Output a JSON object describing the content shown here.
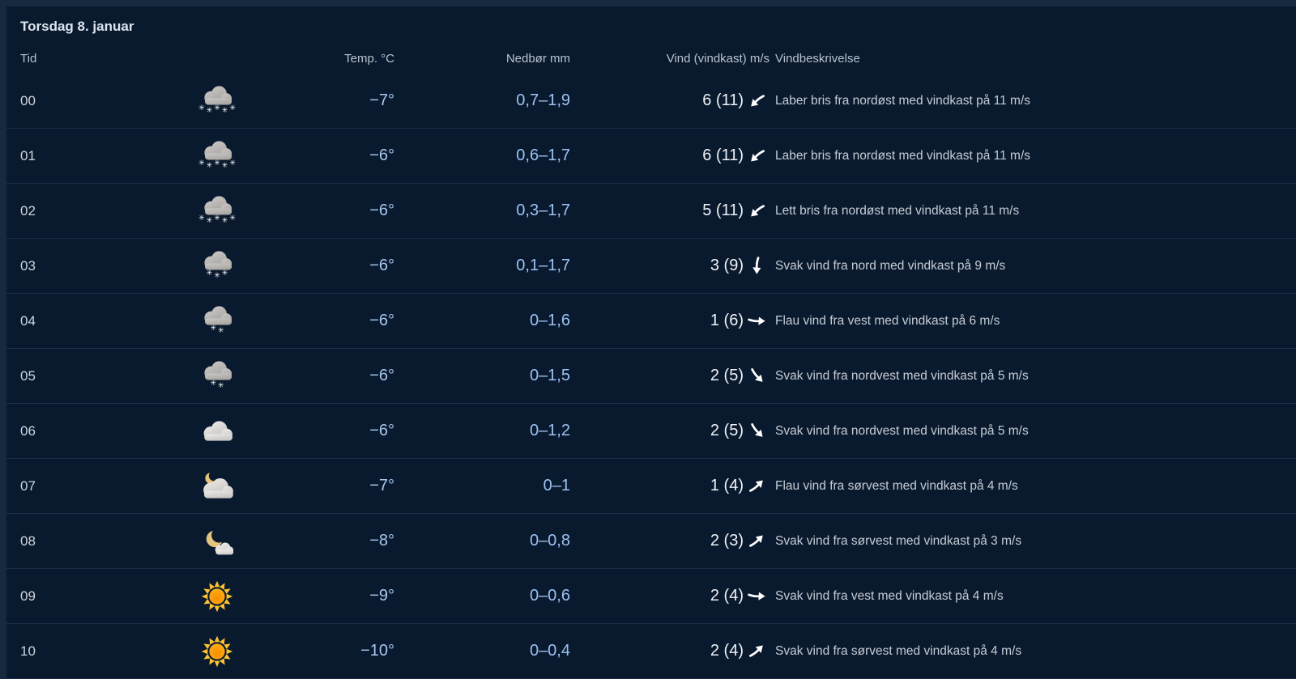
{
  "title": "Torsdag 8. januar",
  "columns": {
    "time": "Tid",
    "temp": "Temp. °C",
    "precip": "Nedbør mm",
    "wind": "Vind (vindkast) m/s",
    "wind_desc": "Vindbeskrivelse"
  },
  "colors": {
    "page_background": "#16293f",
    "panel_background": "#0a1a2e",
    "separator": "#1b2e45",
    "temp_text": "#a7c7f2",
    "precip_text": "#9cc2f3",
    "wind_text": "#eef2f7",
    "desc_text": "#c5ccd5"
  },
  "icon_legend": {
    "heavy-snow": "gray cloud with five snowflakes",
    "snow": "gray cloud with three snowflakes",
    "light-snow": "gray cloud with two snowflakes",
    "cloudy": "light gray cloud",
    "partly-cloudy-night": "crescent moon behind cloud",
    "fair-night": "crescent moon with small cloud",
    "clear-day": "sun"
  },
  "rows": [
    {
      "time": "00",
      "icon": "heavy-snow",
      "temp": "−7°",
      "precip": "0,7–1,9",
      "wind": "6 (11)",
      "arrow_deg": 45,
      "desc": "Laber bris fra nordøst med vindkast på 11 m/s"
    },
    {
      "time": "01",
      "icon": "heavy-snow",
      "temp": "−6°",
      "precip": "0,6–1,7",
      "wind": "6 (11)",
      "arrow_deg": 45,
      "desc": "Laber bris fra nordøst med vindkast på 11 m/s"
    },
    {
      "time": "02",
      "icon": "heavy-snow",
      "temp": "−6°",
      "precip": "0,3–1,7",
      "wind": "5 (11)",
      "arrow_deg": 45,
      "desc": "Lett bris fra nordøst med vindkast på 11 m/s"
    },
    {
      "time": "03",
      "icon": "snow",
      "temp": "−6°",
      "precip": "0,1–1,7",
      "wind": "3 (9)",
      "arrow_deg": 0,
      "desc": "Svak vind fra nord med vindkast på 9 m/s"
    },
    {
      "time": "04",
      "icon": "light-snow",
      "temp": "−6°",
      "precip": "0–1,6",
      "wind": "1 (6)",
      "arrow_deg": -90,
      "desc": "Flau vind fra vest med vindkast på 6 m/s"
    },
    {
      "time": "05",
      "icon": "light-snow",
      "temp": "−6°",
      "precip": "0–1,5",
      "wind": "2 (5)",
      "arrow_deg": -45,
      "desc": "Svak vind fra nordvest med vindkast på 5 m/s"
    },
    {
      "time": "06",
      "icon": "cloudy",
      "temp": "−6°",
      "precip": "0–1,2",
      "wind": "2 (5)",
      "arrow_deg": -45,
      "desc": "Svak vind fra nordvest med vindkast på 5 m/s"
    },
    {
      "time": "07",
      "icon": "partly-cloudy-night",
      "temp": "−7°",
      "precip": "0–1",
      "wind": "1 (4)",
      "arrow_deg": -135,
      "desc": "Flau vind fra sørvest med vindkast på 4 m/s"
    },
    {
      "time": "08",
      "icon": "fair-night",
      "temp": "−8°",
      "precip": "0–0,8",
      "wind": "2 (3)",
      "arrow_deg": -135,
      "desc": "Svak vind fra sørvest med vindkast på 3 m/s"
    },
    {
      "time": "09",
      "icon": "clear-day",
      "temp": "−9°",
      "precip": "0–0,6",
      "wind": "2 (4)",
      "arrow_deg": -90,
      "desc": "Svak vind fra vest med vindkast på 4 m/s"
    },
    {
      "time": "10",
      "icon": "clear-day",
      "temp": "−10°",
      "precip": "0–0,4",
      "wind": "2 (4)",
      "arrow_deg": -135,
      "desc": "Svak vind fra sørvest med vindkast på 4 m/s"
    }
  ]
}
